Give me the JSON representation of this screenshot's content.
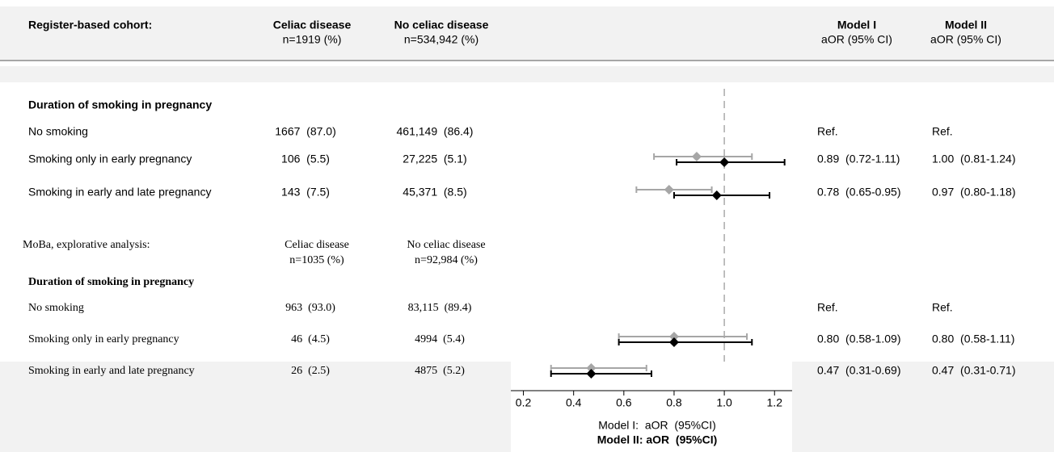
{
  "chart_data": {
    "type": "forest",
    "xlim": [
      0.15,
      1.27
    ],
    "xticks": [
      0.2,
      0.4,
      0.6,
      0.8,
      {
        "value": 1,
        "label": "1.0"
      },
      1.2
    ],
    "reference_line": 1,
    "series": [
      {
        "name": "Model I:  aOR  (95%CI)",
        "color": "#a6a6a6"
      },
      {
        "name": "Model II: aOR  (95%CI)",
        "color": "#000000"
      }
    ],
    "model_columns": [
      {
        "name": "Model I",
        "sub": "aOR (95% CI)"
      },
      {
        "name": "Model II",
        "sub": "aOR (95% CI)"
      }
    ],
    "sections": [
      {
        "title": "Register-based cohort:",
        "columns": [
          {
            "name": "Celiac disease",
            "sub": "n=1919 (%)"
          },
          {
            "name": "No celiac disease",
            "sub": "n=534,942 (%)"
          }
        ],
        "group": "Duration of smoking in pregnancy",
        "rows": [
          {
            "label": "No smoking",
            "celiac": "1667  (87.0)",
            "no_celiac": "461,149  (86.4)",
            "estimates": [
              "Ref.",
              "Ref."
            ]
          },
          {
            "label": "Smoking only in early pregnancy",
            "celiac": "106  (5.5)",
            "no_celiac": "27,225  (5.1)",
            "estimates": [
              {
                "value": 0.89,
                "lower": 0.72,
                "upper": 1.11,
                "label": "0.89  (0.72-1.11)"
              },
              {
                "value": 1.0,
                "lower": 0.81,
                "upper": 1.24,
                "label": "1.00  (0.81-1.24)"
              }
            ]
          },
          {
            "label": "Smoking in early and late pregnancy",
            "celiac": "143  (7.5)",
            "no_celiac": "45,371  (8.5)",
            "estimates": [
              {
                "value": 0.78,
                "lower": 0.65,
                "upper": 0.95,
                "label": "0.78  (0.65-0.95)"
              },
              {
                "value": 0.97,
                "lower": 0.8,
                "upper": 1.18,
                "label": "0.97  (0.80-1.18)"
              }
            ]
          }
        ]
      },
      {
        "title": "MoBa, explorative analysis:",
        "columns": [
          {
            "name": "Celiac disease",
            "sub": "n=1035 (%)"
          },
          {
            "name": "No celiac disease",
            "sub": "n=92,984 (%)"
          }
        ],
        "group": "Duration of smoking in pregnancy",
        "rows": [
          {
            "label": "No smoking",
            "celiac": "963  (93.0)",
            "no_celiac": "83,115  (89.4)",
            "estimates": [
              "Ref.",
              "Ref."
            ]
          },
          {
            "label": "Smoking only in early pregnancy",
            "celiac": "46  (4.5)",
            "no_celiac": "4994  (5.4)",
            "estimates": [
              {
                "value": 0.8,
                "lower": 0.58,
                "upper": 1.09,
                "label": "0.80  (0.58-1.09)"
              },
              {
                "value": 0.8,
                "lower": 0.58,
                "upper": 1.11,
                "label": "0.80  (0.58-1.11)"
              }
            ]
          },
          {
            "label": "Smoking in early and late pregnancy",
            "celiac": "26  (2.5)",
            "no_celiac": "4875  (5.2)",
            "estimates": [
              {
                "value": 0.47,
                "lower": 0.31,
                "upper": 0.69,
                "label": "0.47  (0.31-0.69)"
              },
              {
                "value": 0.47,
                "lower": 0.31,
                "upper": 0.71,
                "label": "0.47  (0.31-0.71)"
              }
            ]
          }
        ]
      }
    ]
  }
}
